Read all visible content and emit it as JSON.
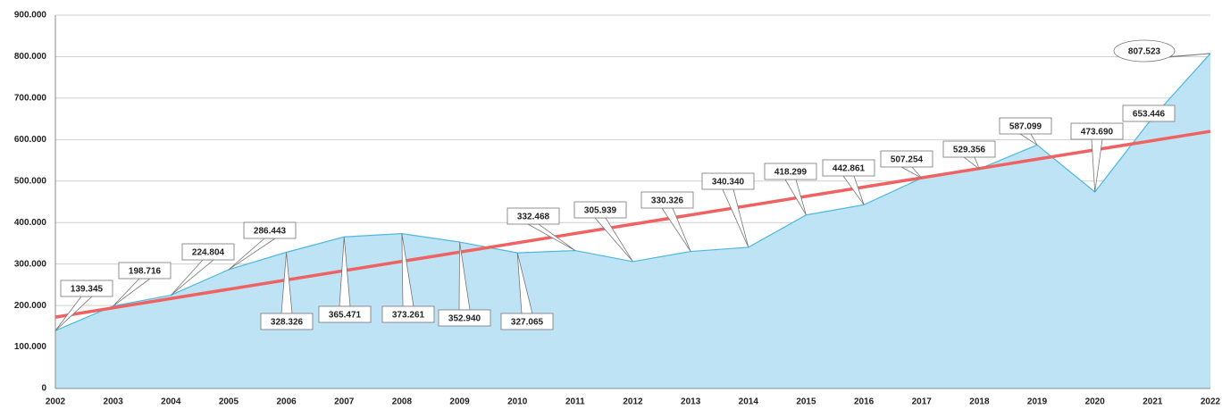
{
  "chart_data": {
    "type": "area",
    "categories": [
      "2002",
      "2003",
      "2004",
      "2005",
      "2006",
      "2007",
      "2008",
      "2009",
      "2010",
      "2011",
      "2012",
      "2013",
      "2014",
      "2015",
      "2016",
      "2017",
      "2018",
      "2019",
      "2020",
      "2021",
      "2022"
    ],
    "values": [
      139345,
      198716,
      224804,
      286443,
      328326,
      365471,
      373261,
      352940,
      327065,
      332468,
      305939,
      330326,
      340340,
      418299,
      442861,
      507254,
      529356,
      587099,
      473690,
      653446,
      807523
    ],
    "value_labels": [
      "139.345",
      "198.716",
      "224.804",
      "286.443",
      "328.326",
      "365.471",
      "373.261",
      "352.940",
      "327.065",
      "332.468",
      "305.939",
      "330.326",
      "340.340",
      "418.299",
      "442.861",
      "507.254",
      "529.356",
      "587.099",
      "473.690",
      "653.446",
      "807.523"
    ],
    "color": "#bde3f4",
    "line_color": "#4db8e0",
    "trend": {
      "color": "#f06262",
      "values": [
        172000,
        620000
      ]
    },
    "ylim": [
      0,
      900000
    ],
    "yticks": [
      0,
      {
        "value": 100000,
        "label": "100.000"
      },
      {
        "value": 200000,
        "label": "200.000"
      },
      {
        "value": 300000,
        "label": "300.000"
      },
      {
        "value": 400000,
        "label": "400.000"
      },
      {
        "value": 500000,
        "label": "500.000"
      },
      {
        "value": 600000,
        "label": "600.000"
      },
      {
        "value": 700000,
        "label": "700.000"
      },
      {
        "value": 800000,
        "label": "800.000"
      },
      {
        "value": 900000,
        "label": "900.000"
      }
    ],
    "grid": true
  }
}
